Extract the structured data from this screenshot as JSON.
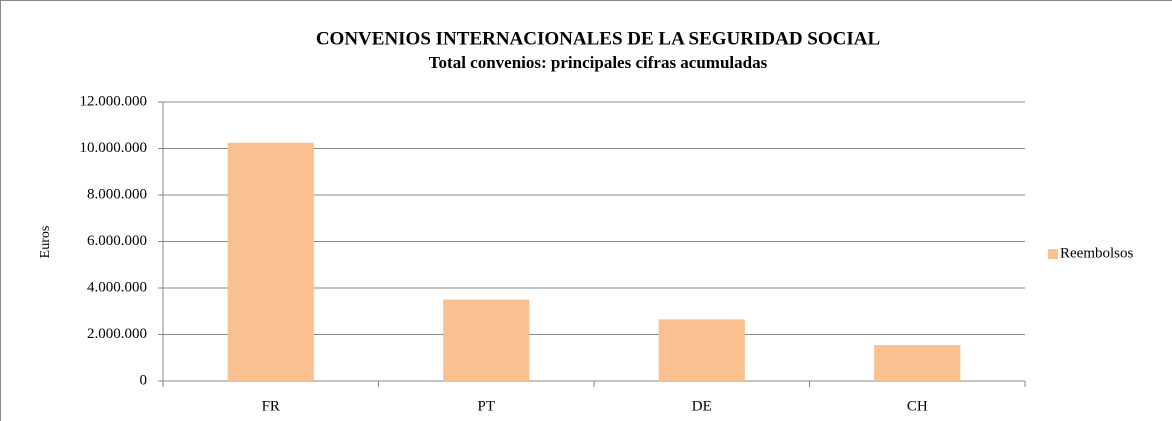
{
  "chart_data": {
    "type": "bar",
    "title": "CONVENIOS INTERNACIONALES DE LA SEGURIDAD SOCIAL",
    "subtitle": "Total convenios: principales cifras acumuladas",
    "y_label": "Euros",
    "categories": [
      "FR",
      "PT",
      "DE",
      "CH"
    ],
    "series": [
      {
        "name": "Reembolsos",
        "color": "#fac090",
        "values": [
          10250000,
          3500000,
          2650000,
          1550000
        ]
      }
    ],
    "ylim": [
      0,
      12000000
    ],
    "yticks": [
      0,
      {
        "value": 2000000,
        "label": "2.000.000"
      },
      {
        "value": 4000000,
        "label": "4.000.000"
      },
      {
        "value": 6000000,
        "label": "6.000.000"
      },
      {
        "value": 8000000,
        "label": "8.000.000"
      },
      {
        "value": 10000000,
        "label": "10.000.000"
      },
      {
        "value": 12000000,
        "label": "12.000.000"
      }
    ],
    "grid": true,
    "legend": "right"
  }
}
